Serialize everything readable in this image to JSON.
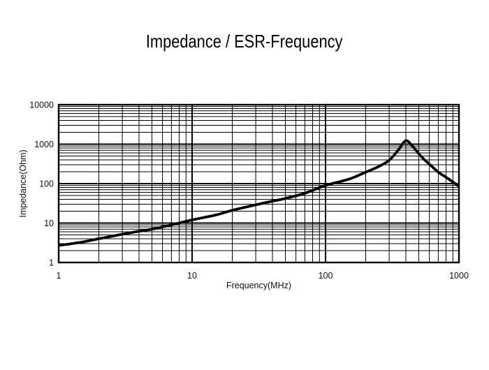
{
  "chart_data": {
    "type": "line",
    "title": "Impedance / ESR-Frequency",
    "xlabel": "Frequency(MHz)",
    "ylabel": "Impedance(Ohm)",
    "x_scale": "log",
    "y_scale": "log",
    "xlim": [
      1,
      1000
    ],
    "ylim": [
      1,
      10000
    ],
    "x_ticks": [
      1,
      10,
      100,
      1000
    ],
    "y_ticks": [
      1,
      10,
      100,
      1000,
      10000
    ],
    "grid": "log major and minor gridlines on both axes",
    "legend": "none",
    "grid_color": "#000000",
    "line_color": "#000000",
    "text_color": "#111111",
    "background": "#ffffff",
    "series": [
      {
        "name": "Impedance",
        "points": [
          [
            1,
            2.7
          ],
          [
            1.5,
            3.3
          ],
          [
            2,
            4.0
          ],
          [
            3,
            5.2
          ],
          [
            4,
            6.2
          ],
          [
            5,
            7.0
          ],
          [
            7,
            9.0
          ],
          [
            10,
            12
          ],
          [
            15,
            16
          ],
          [
            20,
            21
          ],
          [
            30,
            29
          ],
          [
            40,
            36
          ],
          [
            50,
            42
          ],
          [
            70,
            57
          ],
          [
            100,
            90
          ],
          [
            150,
            130
          ],
          [
            200,
            195
          ],
          [
            250,
            270
          ],
          [
            300,
            390
          ],
          [
            350,
            700
          ],
          [
            380,
            1050
          ],
          [
            400,
            1230
          ],
          [
            415,
            1180
          ],
          [
            440,
            960
          ],
          [
            470,
            740
          ],
          [
            500,
            570
          ],
          [
            550,
            405
          ],
          [
            600,
            312
          ],
          [
            700,
            195
          ],
          [
            800,
            145
          ],
          [
            900,
            110
          ],
          [
            1000,
            85
          ]
        ]
      }
    ]
  }
}
